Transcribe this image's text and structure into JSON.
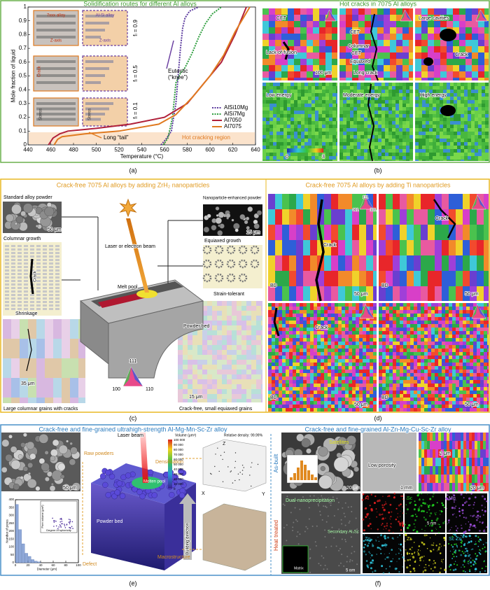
{
  "chart_data": [
    {
      "type": "line",
      "title": "Solidification routes for different Al alloys",
      "xlabel": "Temperature (°C)",
      "ylabel": "Mole fraction of liquid",
      "xlim": [
        440,
        640
      ],
      "xticks": [
        440,
        460,
        480,
        500,
        520,
        540,
        560,
        580,
        600,
        620,
        640
      ],
      "ylim": [
        0,
        1
      ],
      "yticks": [
        0,
        0.1,
        0.2,
        0.3,
        0.4,
        0.5,
        0.6,
        0.7,
        0.8,
        0.9,
        1
      ],
      "legend": "lower right",
      "series": [
        {
          "name": "AlSi10Mg",
          "color": "#5b3a9e",
          "style": "dotted",
          "x": [
            557,
            562,
            566,
            570,
            572,
            574,
            576,
            578,
            582,
            590
          ],
          "values": [
            0,
            0.05,
            0.1,
            0.3,
            0.5,
            0.7,
            0.85,
            0.92,
            0.97,
            1
          ]
        },
        {
          "name": "AlSi7Mg",
          "color": "#2e9e3e",
          "style": "dotted",
          "x": [
            559,
            563,
            567,
            570,
            574,
            578,
            584,
            590,
            596,
            602,
            610
          ],
          "values": [
            0,
            0.05,
            0.2,
            0.45,
            0.52,
            0.56,
            0.66,
            0.78,
            0.88,
            0.95,
            1
          ]
        },
        {
          "name": "Al7050",
          "color": "#b0203a",
          "style": "solid",
          "x": [
            458,
            462,
            468,
            475,
            500,
            530,
            560,
            580,
            595,
            610,
            622,
            632
          ],
          "values": [
            0,
            0.05,
            0.08,
            0.1,
            0.12,
            0.15,
            0.2,
            0.3,
            0.45,
            0.6,
            0.8,
            1
          ]
        },
        {
          "name": "Al7075",
          "color": "#e07a20",
          "style": "solid",
          "x": [
            463,
            466,
            470,
            490,
            520,
            555,
            570,
            585,
            600,
            612,
            622,
            635
          ],
          "values": [
            0,
            0.04,
            0.06,
            0.08,
            0.1,
            0.15,
            0.22,
            0.35,
            0.5,
            0.65,
            0.82,
            1
          ]
        }
      ],
      "annotations": [
        "Eutectic",
        "(“knee”)",
        "Long “tail”",
        "Hot cracking region",
        "fₗ = 0.9",
        "fₗ = 0.5",
        "fₗ = 0.1"
      ]
    },
    {
      "type": "histogram",
      "xlabel": "Diameter (μm)",
      "ylabel": "Number of pores",
      "color": "#8fa8d8",
      "bins": [
        0,
        5,
        10,
        15,
        20,
        25,
        30,
        35,
        40
      ],
      "values": [
        370,
        210,
        120,
        60,
        40,
        20,
        10,
        5
      ],
      "xlim": [
        0,
        100
      ],
      "xticks": [
        0,
        20,
        40,
        60,
        80,
        100
      ],
      "ylim": [
        0,
        400
      ],
      "yticks": [
        0,
        50,
        100,
        150,
        200,
        250,
        300,
        350,
        400
      ]
    }
  ],
  "panel_labels": [
    "(a)",
    "(b)",
    "(c)",
    "(d)",
    "(e)",
    "(f)"
  ],
  "a_insets": [
    "7xxx alloy",
    "Al-Si alloy",
    "Z-axis",
    "Z-axis",
    "Crack",
    "Stress",
    "Stress"
  ],
  "b": {
    "title": "Hot cracks in 7075 Al alloys",
    "labels": [
      "CET",
      "Lack-of-fusion",
      "100 μm",
      "CET",
      "Columnar",
      "CET",
      "Equiaxed",
      "Long crack",
      "Large cavities",
      "Crack",
      "Low energy",
      "Moderate energy",
      "High energy",
      "0",
      "3"
    ]
  },
  "c": {
    "title": "Crack-free 7075 Al alloys by adding ZrH₂ nanoparticles",
    "labels": [
      "Standard alloy powder",
      "50 μm",
      "Columnar growth",
      "Crack",
      "Shrinkage",
      "35 μm",
      "Large columnar grains with cracks",
      "Laser or electron beam",
      "Melt pool",
      "Powder bed",
      "Nanoparticle-enhanced powder",
      "15 μm",
      "Equiaxed growth",
      "Strain-tolerant",
      "15 μm",
      "Crack-free, small equiaxed grains",
      "111",
      "100",
      "110"
    ]
  },
  "d": {
    "title": "Crack-free 7075 Al alloys by adding Ti nanoparticles",
    "labels": [
      "Crack",
      "BD",
      "50 μm",
      "Crack",
      "BD",
      "50 μm",
      "Crack",
      "BD",
      "50 μm",
      "BD",
      "50 μm",
      "111",
      "001",
      "101"
    ]
  },
  "e": {
    "title": "Crack-free and fine-grained ultrahigh-strength Al-Mg-Mn-Sc-Zr alloy",
    "labels": [
      "50 μm",
      "Raw powders",
      "Laser beam",
      "Molten pool",
      "Powder bed",
      "Defect",
      "Densification",
      "Macrostructure",
      "Building direction",
      "Volume (μm³)",
      "Relative density: 99.99%",
      "Z",
      "X",
      "Y",
      "Pore volume (μm³)",
      "Degree of sphericity"
    ],
    "colorbar": [
      "100 000",
      "90 000",
      "80 000",
      "70 000",
      "60 000",
      "50 000",
      "40 000",
      "30 000",
      "20 000",
      "10 000",
      "0"
    ]
  },
  "f": {
    "title": "Crack-free and fine-grained Al-Zn-Mg-Cu-Sc-Zr alloy",
    "labels": [
      "As-built",
      "Heat treated",
      "Satellites",
      "20 μm",
      "Low porosity",
      "1 mm",
      "2 μm",
      "20 μm",
      "Dual-nanoprecipitation",
      "Secondary Al₃Sc",
      "Matrix",
      "5 nm",
      "Al",
      "Sc",
      "Mg",
      "Zn",
      "Zr",
      "Sc Zn",
      "5 nm"
    ]
  }
}
